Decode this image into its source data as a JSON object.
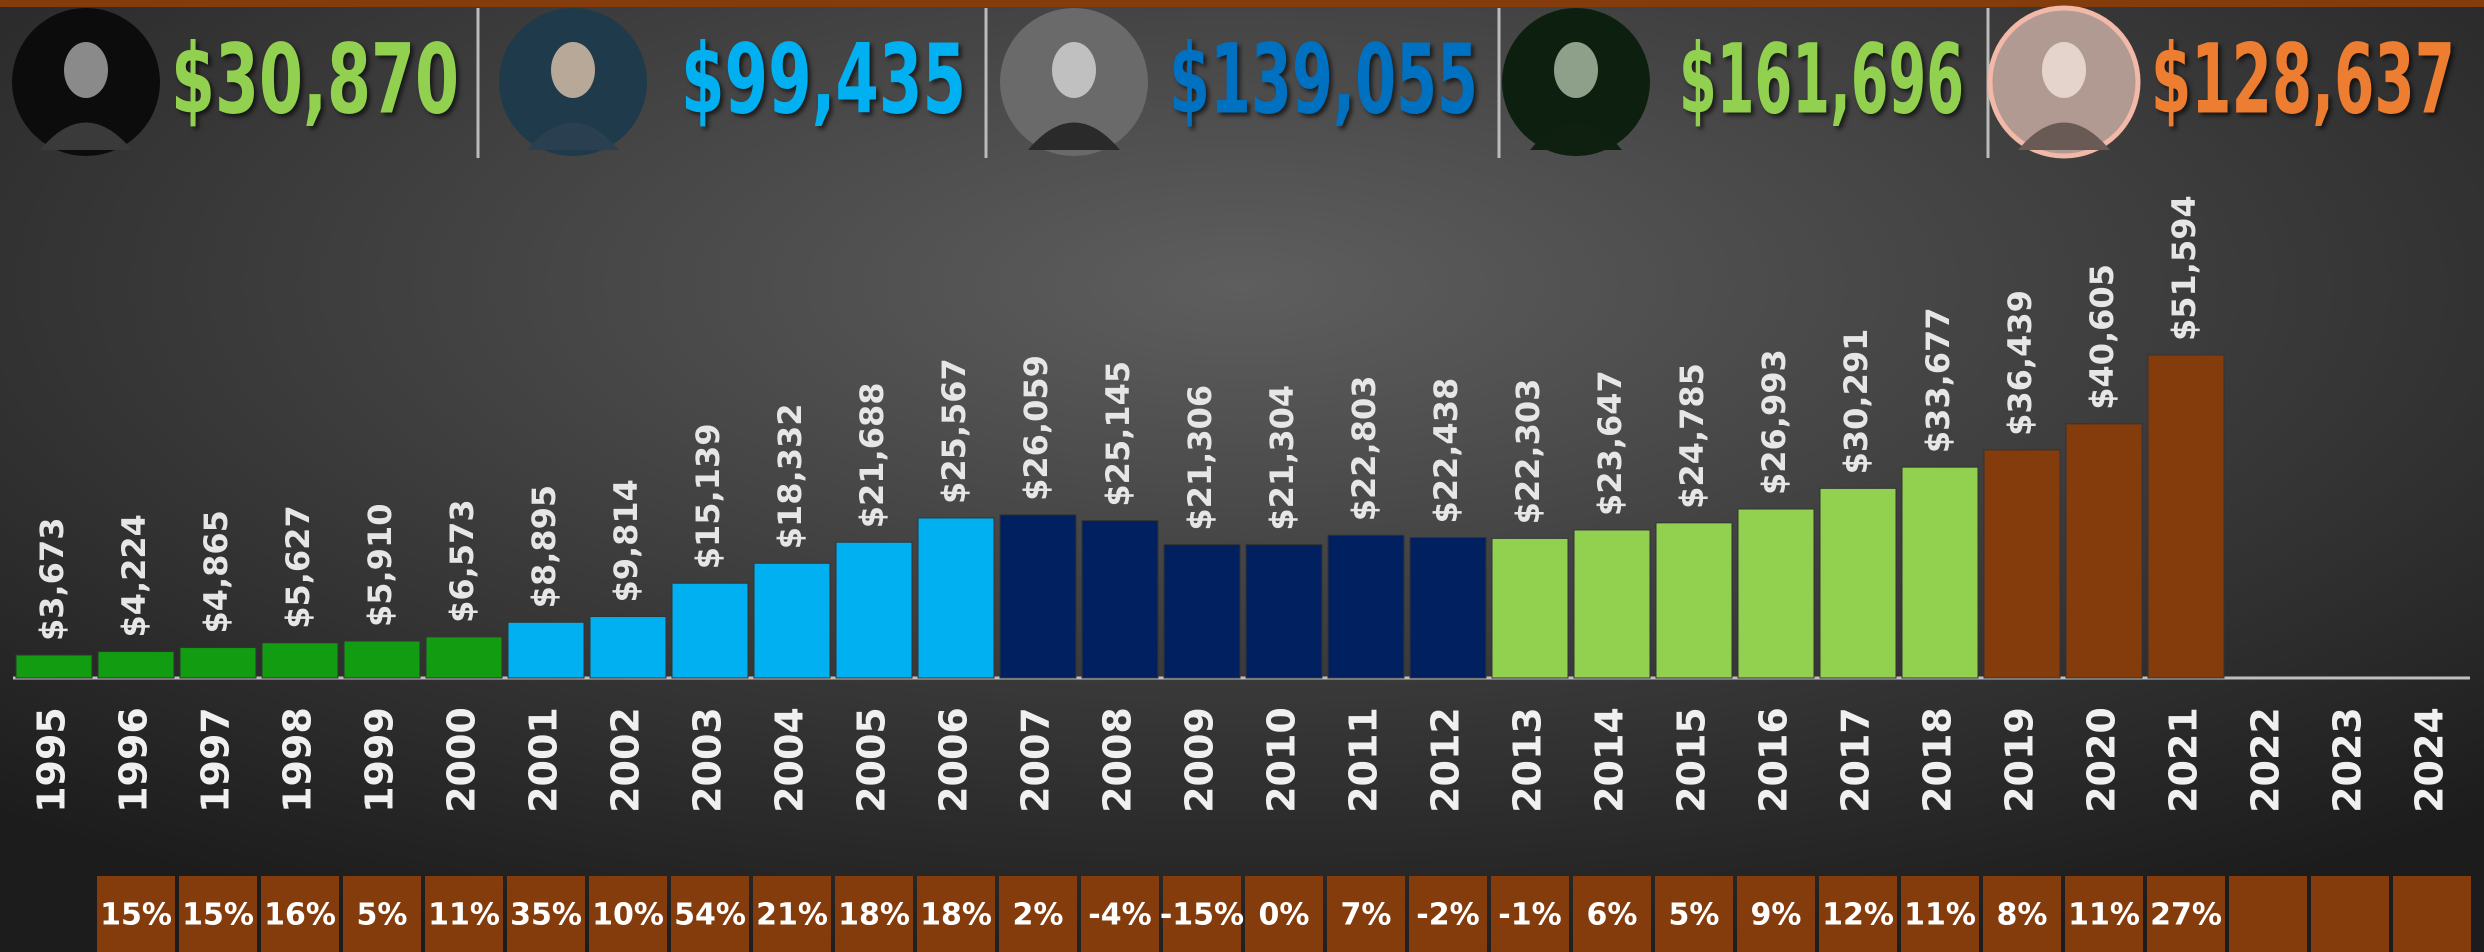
{
  "chart_data": {
    "type": "bar",
    "groups": [
      {
        "label": "$30,870",
        "color": "#92d050"
      },
      {
        "label": "$99,435",
        "color": "#00b0f0"
      },
      {
        "label": "$139,055",
        "color": "#0070c0"
      },
      {
        "label": "$161,696",
        "color": "#92d050"
      },
      {
        "label": "$128,637",
        "color": "#ed7d31"
      }
    ],
    "categories": [
      "1995",
      "1996",
      "1997",
      "1998",
      "1999",
      "2000",
      "2001",
      "2002",
      "2003",
      "2004",
      "2005",
      "2006",
      "2007",
      "2008",
      "2009",
      "2010",
      "2011",
      "2012",
      "2013",
      "2014",
      "2015",
      "2016",
      "2017",
      "2018",
      "2019",
      "2020",
      "2021",
      "2022",
      "2023",
      "2024"
    ],
    "values": [
      3673,
      4224,
      4865,
      5627,
      5910,
      6573,
      8895,
      9814,
      15139,
      18332,
      21688,
      25567,
      26059,
      25145,
      21306,
      21304,
      22803,
      22438,
      22303,
      23647,
      24785,
      26993,
      30291,
      33677,
      36439,
      40605,
      51594,
      null,
      null,
      null
    ],
    "value_labels": [
      "$3,673",
      "$4,224",
      "$4,865",
      "$5,627",
      "$5,910",
      "$6,573",
      "$8,895",
      "$9,814",
      "$15,139",
      "$18,332",
      "$21,688",
      "$25,567",
      "$26,059",
      "$25,145",
      "$21,306",
      "$21,304",
      "$22,803",
      "$22,438",
      "$22,303",
      "$23,647",
      "$24,785",
      "$26,993",
      "$30,291",
      "$33,677",
      "$36,439",
      "$40,605",
      "$51,594",
      null,
      null,
      null
    ],
    "colors": [
      "#129c12",
      "#129c12",
      "#129c12",
      "#129c12",
      "#129c12",
      "#129c12",
      "#00b0f0",
      "#00b0f0",
      "#00b0f0",
      "#00b0f0",
      "#00b0f0",
      "#00b0f0",
      "#002060",
      "#002060",
      "#002060",
      "#002060",
      "#002060",
      "#002060",
      "#92d050",
      "#92d050",
      "#92d050",
      "#92d050",
      "#92d050",
      "#92d050",
      "#843c0c",
      "#843c0c",
      "#843c0c",
      null,
      null,
      null
    ],
    "growth_labels": [
      null,
      "15%",
      "15%",
      "16%",
      "5%",
      "11%",
      "35%",
      "10%",
      "54%",
      "21%",
      "18%",
      "18%",
      "2%",
      "-4%",
      "-15%",
      "0%",
      "7%",
      "-2%",
      "-1%",
      "6%",
      "5%",
      "9%",
      "12%",
      "11%",
      "8%",
      "11%",
      "27%",
      null,
      null,
      null
    ]
  }
}
